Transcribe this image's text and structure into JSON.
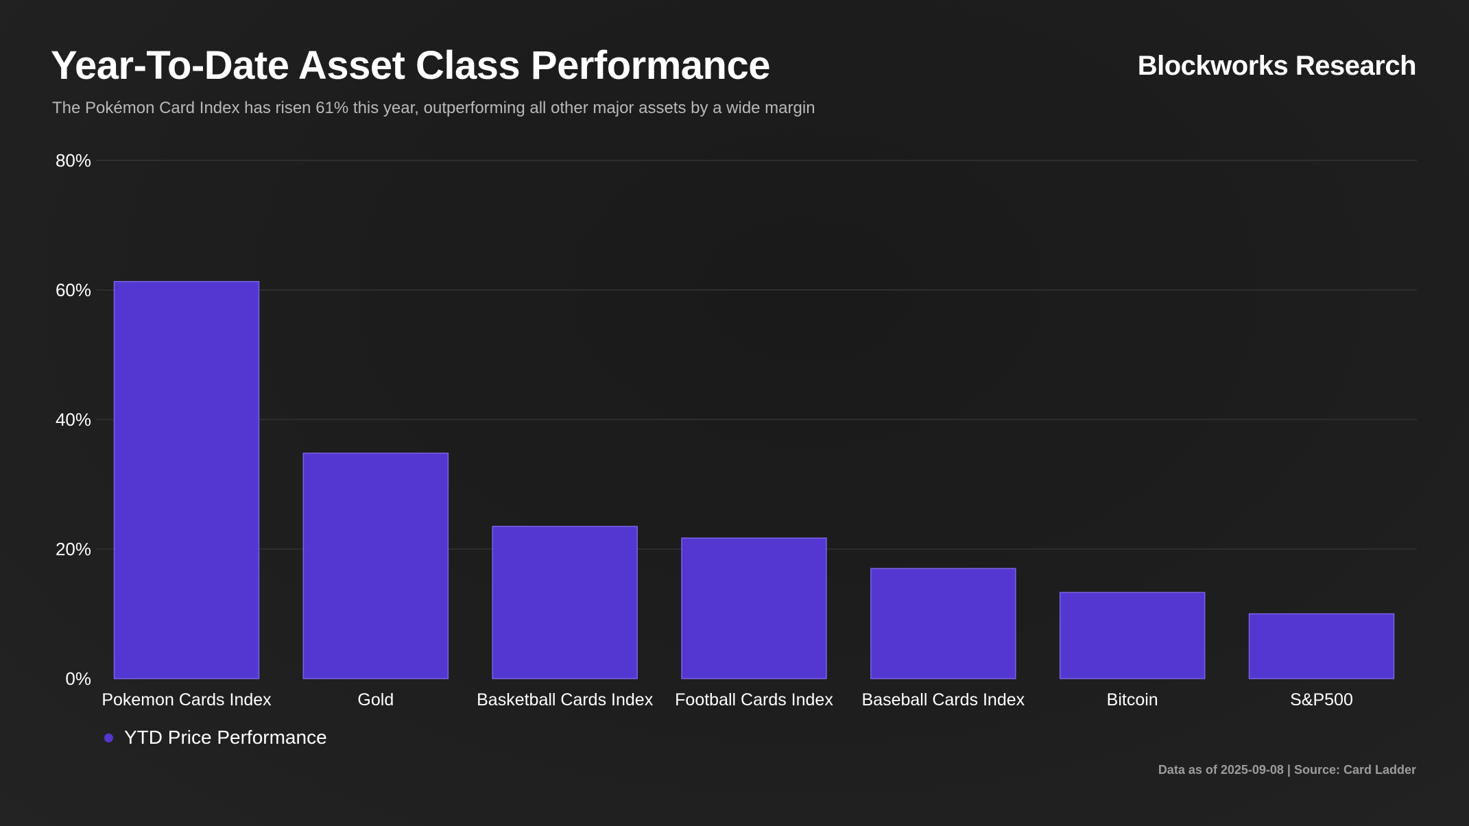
{
  "header": {
    "title": "Year-To-Date Asset Class Performance",
    "subtitle": "The Pokémon Card Index has risen 61% this year, outperforming all other major assets by a wide margin",
    "brand": "Blockworks Research"
  },
  "footer": {
    "source": "Data as of 2025-09-08 | Source: Card Ladder"
  },
  "colors": {
    "bar": "#5436d0",
    "bar_border": "#7a64e6",
    "grid": "#2e2e2e",
    "tick_text": "#ffffff"
  },
  "chart_data": {
    "type": "bar",
    "title": "Year-To-Date Asset Class Performance",
    "subtitle": "The Pokémon Card Index has risen 61% this year, outperforming all other major assets by a wide margin",
    "categories": [
      "Pokemon Cards Index",
      "Gold",
      "Basketball Cards Index",
      "Football Cards Index",
      "Baseball Cards Index",
      "Bitcoin",
      "S&P500"
    ],
    "series": [
      {
        "name": "YTD Price Performance",
        "values": [
          61.3,
          34.8,
          23.5,
          21.7,
          17.0,
          13.3,
          10.0
        ]
      }
    ],
    "ylim": [
      0,
      80
    ],
    "yticks": [
      0,
      20,
      40,
      60,
      80
    ],
    "ytick_labels": [
      "0%",
      "20%",
      "40%",
      "60%",
      "80%"
    ],
    "xlabel": "",
    "ylabel": "",
    "grid": true,
    "legend_position": "bottom-left"
  }
}
